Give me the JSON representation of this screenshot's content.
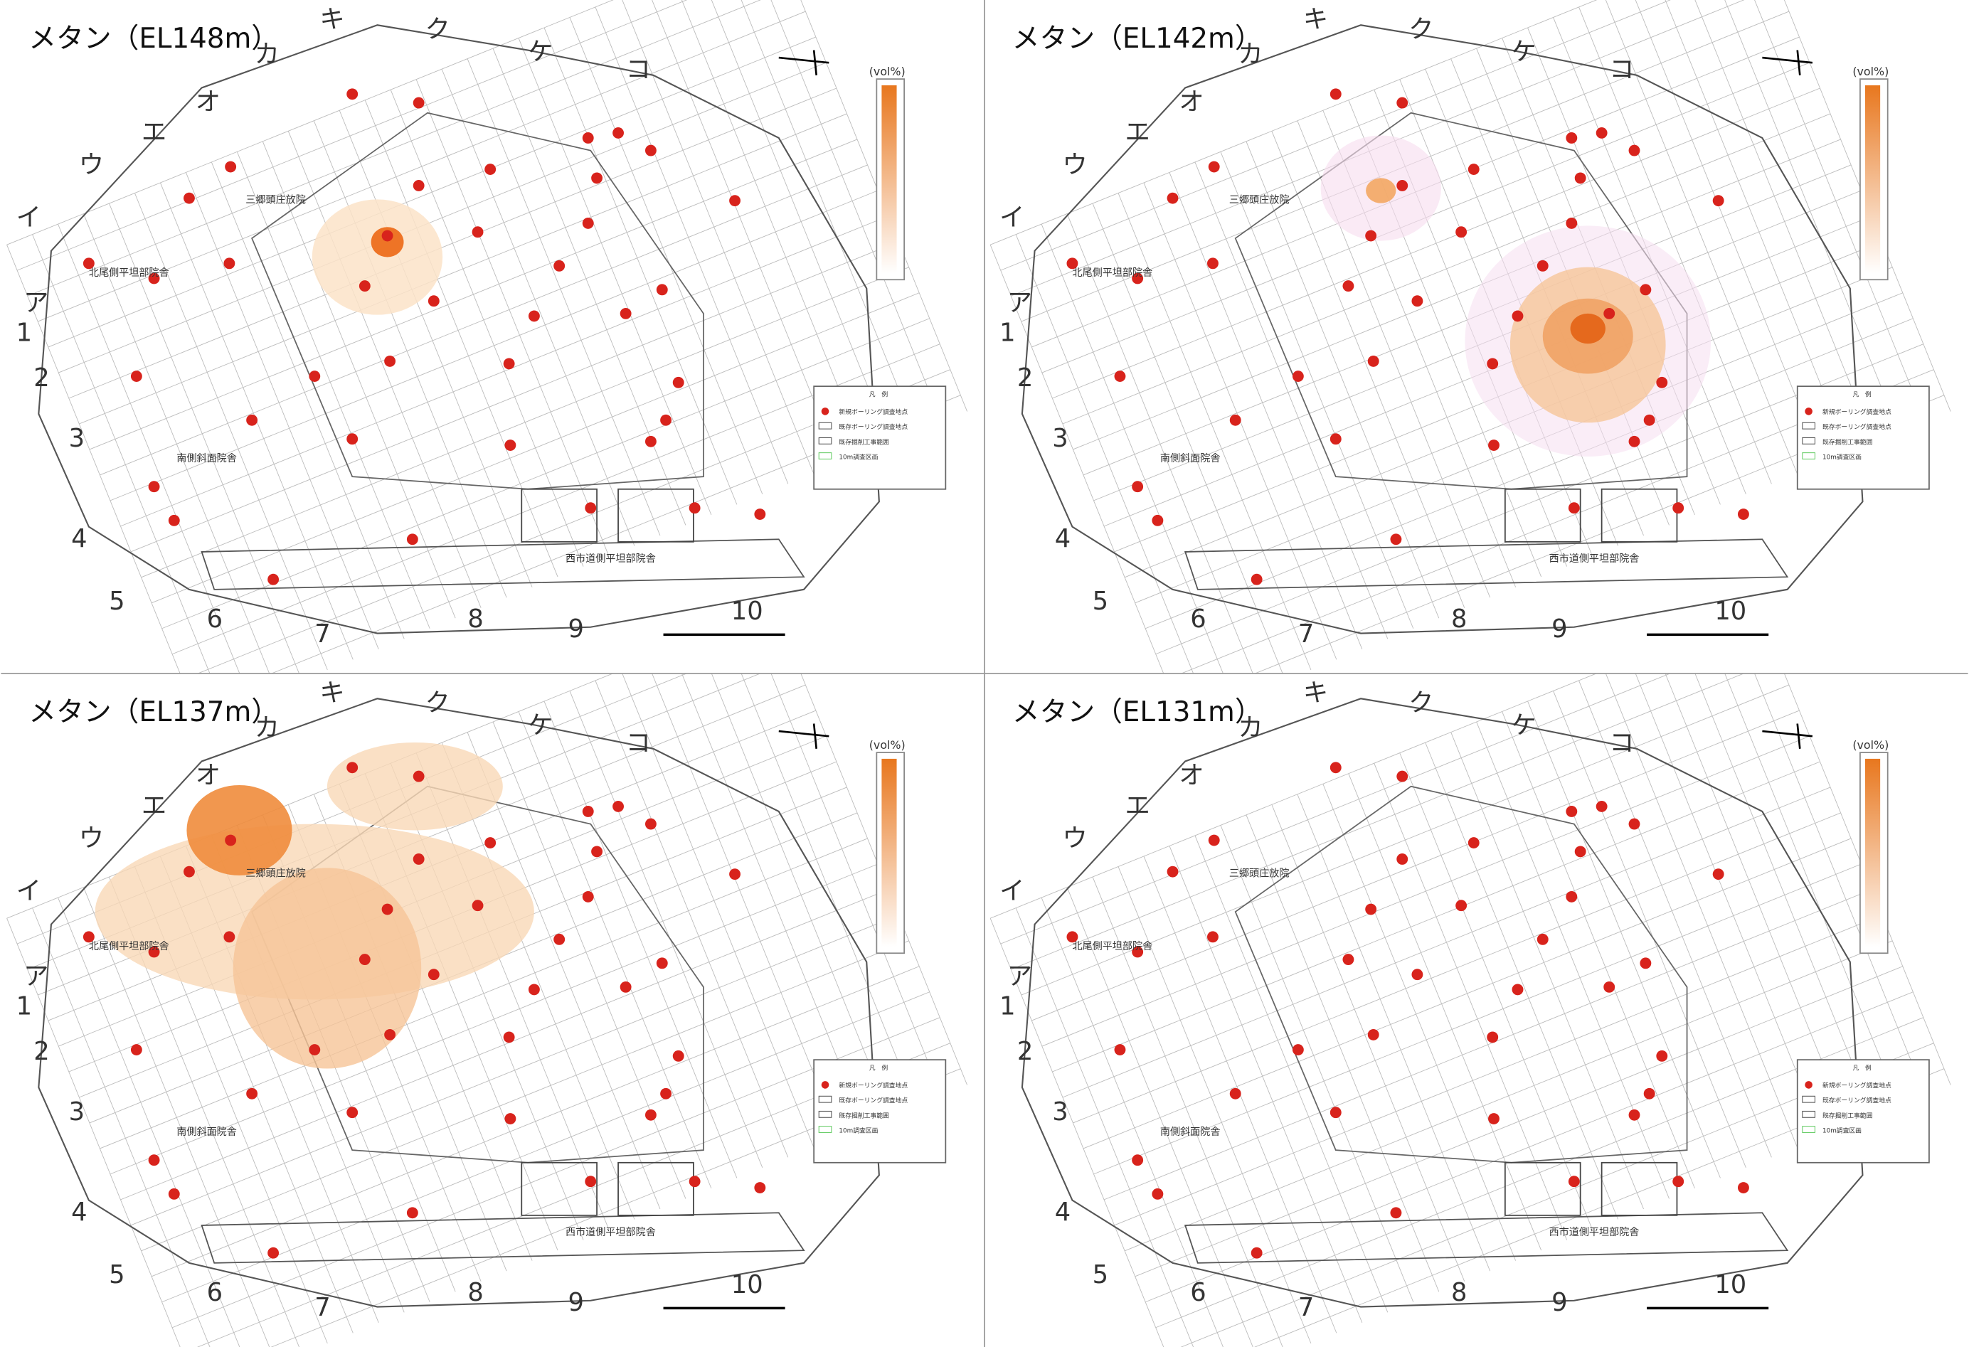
{
  "panels": [
    {
      "title": "メタン（EL148m）"
    },
    {
      "title": "メタン（EL142m）"
    },
    {
      "title": "メタン（EL137m）"
    },
    {
      "title": "メタン（EL131m）"
    }
  ],
  "grid_letters": [
    "ア",
    "イ",
    "ウ",
    "エ",
    "オ",
    "カ",
    "キ",
    "ク",
    "ケ",
    "コ"
  ],
  "grid_numbers": [
    "1",
    "2",
    "3",
    "4",
    "5",
    "6",
    "7",
    "8",
    "9",
    "10"
  ],
  "colorbar_unit": "(vol%)",
  "legend": {
    "title": "凡　例",
    "items": [
      "新規ボーリング調査地点",
      "既存ボーリング調査地点",
      "既存掘削工事範囲",
      "10m調査区画"
    ]
  },
  "site_labels": [
    "北尾側平坦部院舎",
    "三郷頭庄放院",
    "西市道側平坦部院舎",
    "南側斜面院舎"
  ]
}
